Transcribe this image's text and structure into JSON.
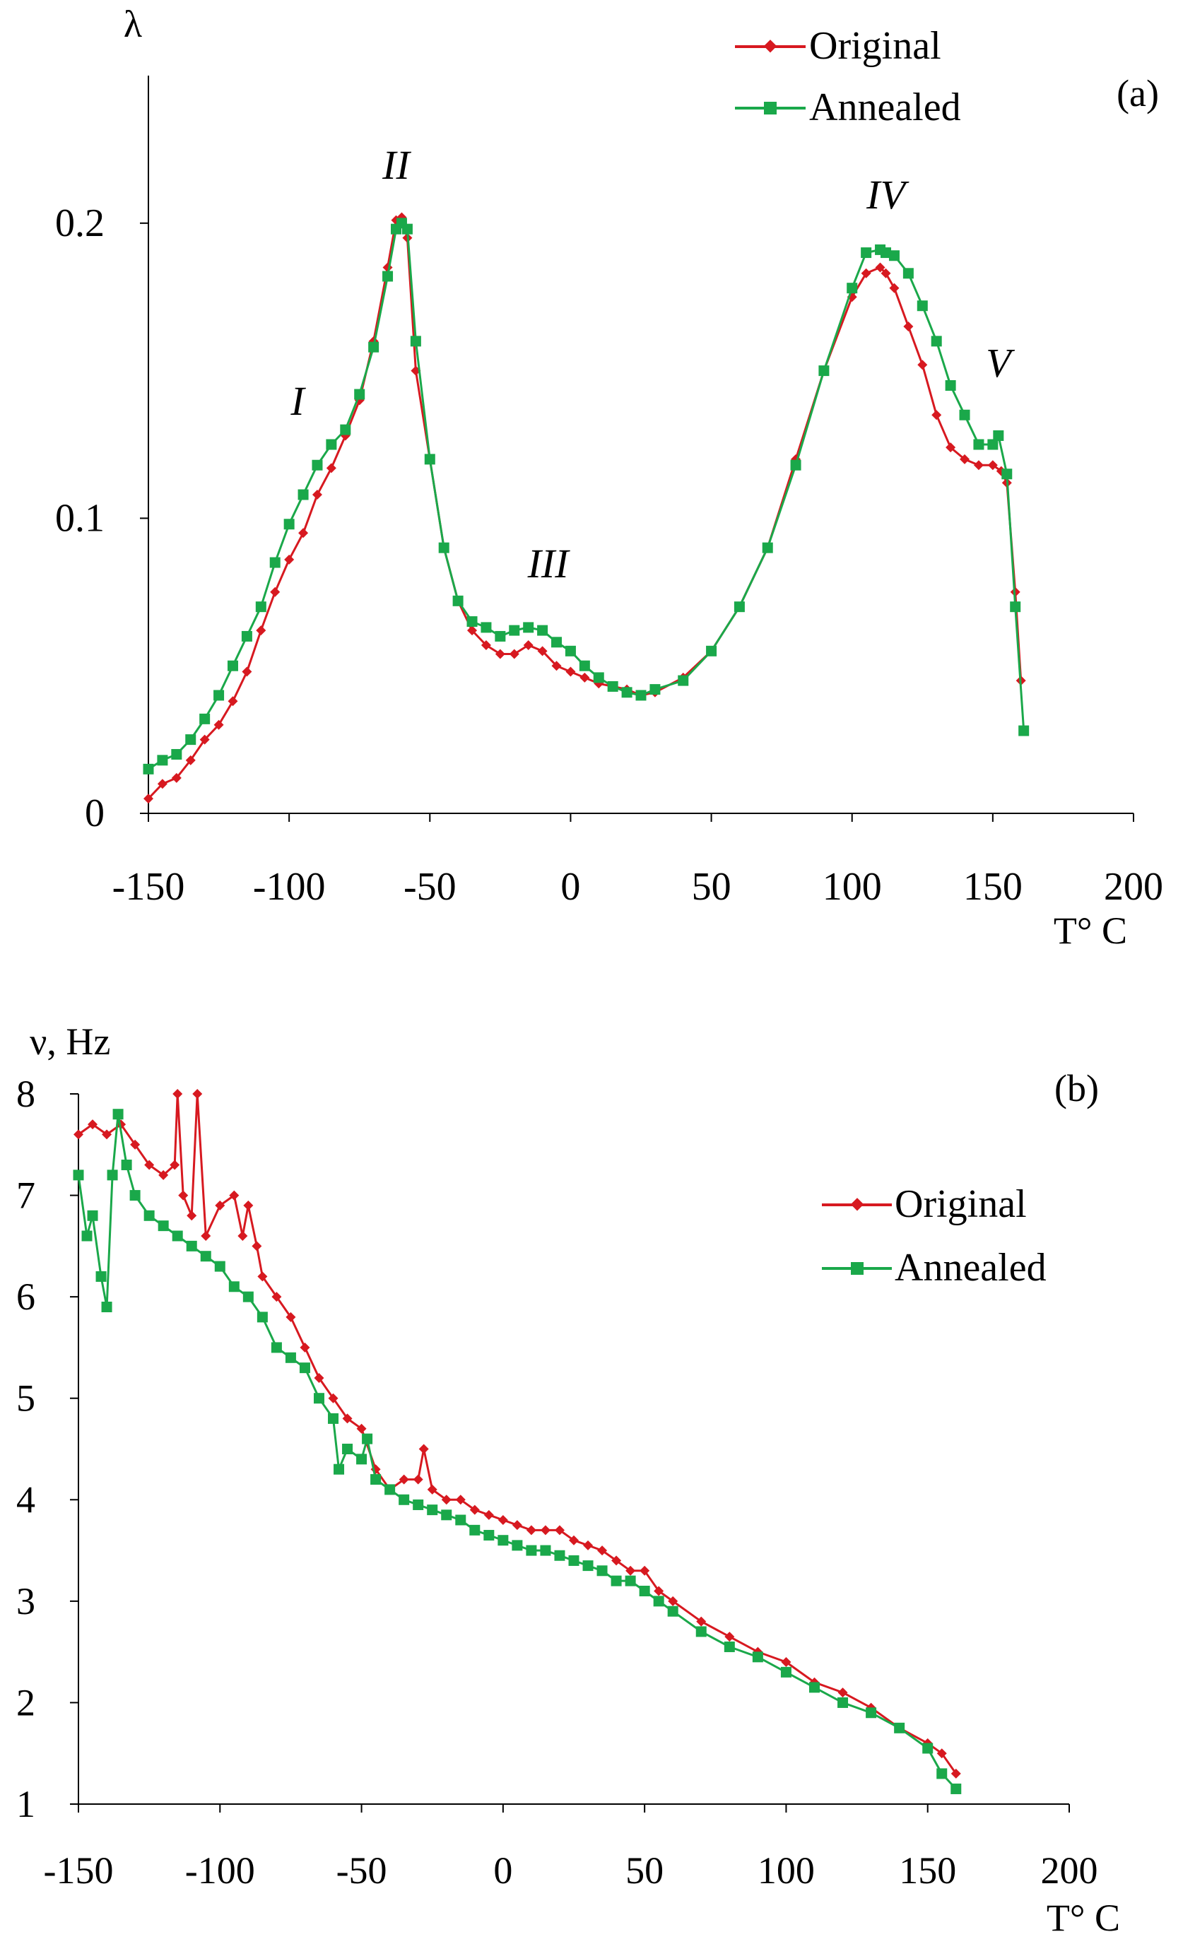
{
  "colors": {
    "original": "#d71920",
    "annealed": "#1aa84a",
    "axis": "#000000"
  },
  "chart_data": [
    {
      "type": "line",
      "panel_label": "(a)",
      "ylabel": "λ",
      "xlabel": "T° C",
      "xlim": [
        -150,
        200
      ],
      "ylim": [
        0,
        0.25
      ],
      "xticks": [
        -150,
        -100,
        -50,
        0,
        50,
        100,
        150,
        200
      ],
      "xtick_labels": [
        "-150",
        "-100",
        "-50",
        "0",
        "50",
        "100",
        "150",
        "200"
      ],
      "yticks": [
        0,
        0.1,
        0.2
      ],
      "ytick_labels": [
        "0",
        "0.1",
        "0.2"
      ],
      "legend": [
        "Original",
        "Annealed"
      ],
      "legend_position": "top-right",
      "annotations": [
        {
          "text": "I",
          "x": -97,
          "y": 0.135
        },
        {
          "text": "II",
          "x": -62,
          "y": 0.215
        },
        {
          "text": "III",
          "x": -8,
          "y": 0.08
        },
        {
          "text": "IV",
          "x": 112,
          "y": 0.205
        },
        {
          "text": "V",
          "x": 152,
          "y": 0.148
        }
      ],
      "series": [
        {
          "name": "Original",
          "x": [
            -150,
            -145,
            -140,
            -135,
            -130,
            -125,
            -120,
            -115,
            -110,
            -105,
            -100,
            -95,
            -90,
            -85,
            -80,
            -75,
            -70,
            -65,
            -62,
            -60,
            -58,
            -55,
            -50,
            -45,
            -40,
            -35,
            -30,
            -25,
            -20,
            -15,
            -10,
            -5,
            0,
            5,
            10,
            15,
            20,
            25,
            30,
            40,
            50,
            60,
            70,
            80,
            90,
            100,
            105,
            110,
            112,
            115,
            120,
            125,
            130,
            135,
            140,
            145,
            150,
            153,
            155,
            158,
            160
          ],
          "values": [
            0.005,
            0.01,
            0.012,
            0.018,
            0.025,
            0.03,
            0.038,
            0.048,
            0.062,
            0.075,
            0.086,
            0.095,
            0.108,
            0.117,
            0.128,
            0.14,
            0.16,
            0.185,
            0.201,
            0.202,
            0.195,
            0.15,
            0.12,
            0.09,
            0.072,
            0.062,
            0.057,
            0.054,
            0.054,
            0.057,
            0.055,
            0.05,
            0.048,
            0.046,
            0.044,
            0.043,
            0.042,
            0.04,
            0.041,
            0.046,
            0.055,
            0.07,
            0.09,
            0.12,
            0.15,
            0.175,
            0.183,
            0.185,
            0.183,
            0.178,
            0.165,
            0.152,
            0.135,
            0.124,
            0.12,
            0.118,
            0.118,
            0.116,
            0.112,
            0.075,
            0.045
          ]
        },
        {
          "name": "Annealed",
          "x": [
            -150,
            -145,
            -140,
            -135,
            -130,
            -125,
            -120,
            -115,
            -110,
            -105,
            -100,
            -95,
            -90,
            -85,
            -80,
            -75,
            -70,
            -65,
            -62,
            -60,
            -58,
            -55,
            -50,
            -45,
            -40,
            -35,
            -30,
            -25,
            -20,
            -15,
            -10,
            -5,
            0,
            5,
            10,
            15,
            20,
            25,
            30,
            40,
            50,
            60,
            70,
            80,
            90,
            100,
            105,
            110,
            112,
            115,
            120,
            125,
            130,
            135,
            140,
            145,
            150,
            152,
            155,
            158,
            161
          ],
          "values": [
            0.015,
            0.018,
            0.02,
            0.025,
            0.032,
            0.04,
            0.05,
            0.06,
            0.07,
            0.085,
            0.098,
            0.108,
            0.118,
            0.125,
            0.13,
            0.142,
            0.158,
            0.182,
            0.198,
            0.2,
            0.198,
            0.16,
            0.12,
            0.09,
            0.072,
            0.065,
            0.063,
            0.06,
            0.062,
            0.063,
            0.062,
            0.058,
            0.055,
            0.05,
            0.046,
            0.043,
            0.041,
            0.04,
            0.042,
            0.045,
            0.055,
            0.07,
            0.09,
            0.118,
            0.15,
            0.178,
            0.19,
            0.191,
            0.19,
            0.189,
            0.183,
            0.172,
            0.16,
            0.145,
            0.135,
            0.125,
            0.125,
            0.128,
            0.115,
            0.07,
            0.028
          ]
        }
      ]
    },
    {
      "type": "line",
      "panel_label": "(b)",
      "ylabel": "ν, Hz",
      "xlabel": "T° C",
      "xlim": [
        -150,
        200
      ],
      "ylim": [
        1,
        8
      ],
      "xticks": [
        -150,
        -100,
        -50,
        0,
        50,
        100,
        150,
        200
      ],
      "xtick_labels": [
        "-150",
        "-100",
        "-50",
        "0",
        "50",
        "100",
        "150",
        "200"
      ],
      "yticks": [
        1,
        2,
        3,
        4,
        5,
        6,
        7,
        8
      ],
      "ytick_labels": [
        "1",
        "2",
        "3",
        "4",
        "5",
        "6",
        "7",
        "8"
      ],
      "legend": [
        "Original",
        "Annealed"
      ],
      "legend_position": "upper-right",
      "series": [
        {
          "name": "Original",
          "x": [
            -150,
            -145,
            -140,
            -135,
            -130,
            -125,
            -120,
            -116,
            -115,
            -113,
            -110,
            -108,
            -105,
            -100,
            -95,
            -92,
            -90,
            -87,
            -85,
            -80,
            -75,
            -70,
            -65,
            -60,
            -55,
            -50,
            -45,
            -40,
            -35,
            -30,
            -28,
            -25,
            -20,
            -15,
            -10,
            -5,
            0,
            5,
            10,
            15,
            20,
            25,
            30,
            35,
            40,
            45,
            50,
            55,
            60,
            70,
            80,
            90,
            100,
            110,
            120,
            130,
            140,
            150,
            155,
            160
          ],
          "values": [
            7.6,
            7.7,
            7.6,
            7.7,
            7.5,
            7.3,
            7.2,
            7.3,
            8.0,
            7.0,
            6.8,
            8.0,
            6.6,
            6.9,
            7.0,
            6.6,
            6.9,
            6.5,
            6.2,
            6.0,
            5.8,
            5.5,
            5.2,
            5.0,
            4.8,
            4.7,
            4.3,
            4.1,
            4.2,
            4.2,
            4.5,
            4.1,
            4.0,
            4.0,
            3.9,
            3.85,
            3.8,
            3.75,
            3.7,
            3.7,
            3.7,
            3.6,
            3.55,
            3.5,
            3.4,
            3.3,
            3.3,
            3.1,
            3.0,
            2.8,
            2.65,
            2.5,
            2.4,
            2.2,
            2.1,
            1.95,
            1.75,
            1.6,
            1.5,
            1.3
          ]
        },
        {
          "name": "Annealed",
          "x": [
            -150,
            -147,
            -145,
            -142,
            -140,
            -138,
            -136,
            -133,
            -130,
            -125,
            -120,
            -115,
            -110,
            -105,
            -100,
            -95,
            -90,
            -85,
            -80,
            -75,
            -70,
            -65,
            -60,
            -58,
            -55,
            -50,
            -48,
            -45,
            -40,
            -35,
            -30,
            -25,
            -20,
            -15,
            -10,
            -5,
            0,
            5,
            10,
            15,
            20,
            25,
            30,
            35,
            40,
            45,
            50,
            55,
            60,
            70,
            80,
            90,
            100,
            110,
            120,
            130,
            140,
            150,
            155,
            160
          ],
          "values": [
            7.2,
            6.6,
            6.8,
            6.2,
            5.9,
            7.2,
            7.8,
            7.3,
            7.0,
            6.8,
            6.7,
            6.6,
            6.5,
            6.4,
            6.3,
            6.1,
            6.0,
            5.8,
            5.5,
            5.4,
            5.3,
            5.0,
            4.8,
            4.3,
            4.5,
            4.4,
            4.6,
            4.2,
            4.1,
            4.0,
            3.95,
            3.9,
            3.85,
            3.8,
            3.7,
            3.65,
            3.6,
            3.55,
            3.5,
            3.5,
            3.45,
            3.4,
            3.35,
            3.3,
            3.2,
            3.2,
            3.1,
            3.0,
            2.9,
            2.7,
            2.55,
            2.45,
            2.3,
            2.15,
            2.0,
            1.9,
            1.75,
            1.55,
            1.3,
            1.15
          ]
        }
      ]
    }
  ]
}
